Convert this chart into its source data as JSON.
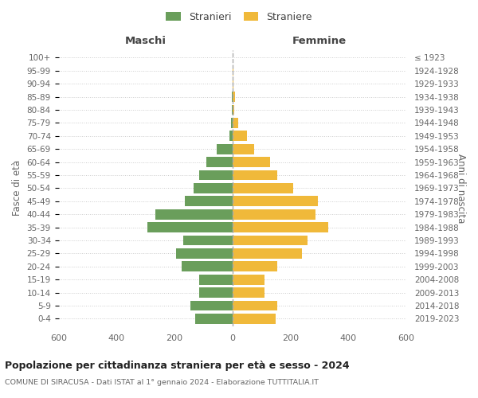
{
  "age_groups": [
    "0-4",
    "5-9",
    "10-14",
    "15-19",
    "20-24",
    "25-29",
    "30-34",
    "35-39",
    "40-44",
    "45-49",
    "50-54",
    "55-59",
    "60-64",
    "65-69",
    "70-74",
    "75-79",
    "80-84",
    "85-89",
    "90-94",
    "95-99",
    "100+"
  ],
  "birth_years": [
    "2019-2023",
    "2014-2018",
    "2009-2013",
    "2004-2008",
    "1999-2003",
    "1994-1998",
    "1989-1993",
    "1984-1988",
    "1979-1983",
    "1974-1978",
    "1969-1973",
    "1964-1968",
    "1959-1963",
    "1954-1958",
    "1949-1953",
    "1944-1948",
    "1939-1943",
    "1934-1938",
    "1929-1933",
    "1924-1928",
    "≤ 1923"
  ],
  "males": [
    130,
    145,
    115,
    115,
    175,
    195,
    170,
    295,
    265,
    165,
    135,
    115,
    90,
    55,
    10,
    5,
    3,
    2,
    0,
    0,
    0
  ],
  "females": [
    150,
    155,
    110,
    110,
    155,
    240,
    260,
    330,
    285,
    295,
    210,
    155,
    130,
    75,
    50,
    20,
    5,
    8,
    3,
    2,
    1
  ],
  "male_color": "#6a9e5b",
  "female_color": "#f0b93a",
  "grid_color": "#cccccc",
  "title": "Popolazione per cittadinanza straniera per età e sesso - 2024",
  "subtitle": "COMUNE DI SIRACUSA - Dati ISTAT al 1° gennaio 2024 - Elaborazione TUTTITALIA.IT",
  "left_label": "Maschi",
  "right_label": "Femmine",
  "ylabel": "Fasce di età",
  "ylabel_right": "Anni di nascita",
  "legend_male": "Stranieri",
  "legend_female": "Straniere",
  "xlim": 600,
  "xticks": [
    -600,
    -400,
    -200,
    0,
    200,
    400,
    600
  ],
  "xticklabels": [
    "600",
    "400",
    "200",
    "0",
    "200",
    "400",
    "600"
  ]
}
